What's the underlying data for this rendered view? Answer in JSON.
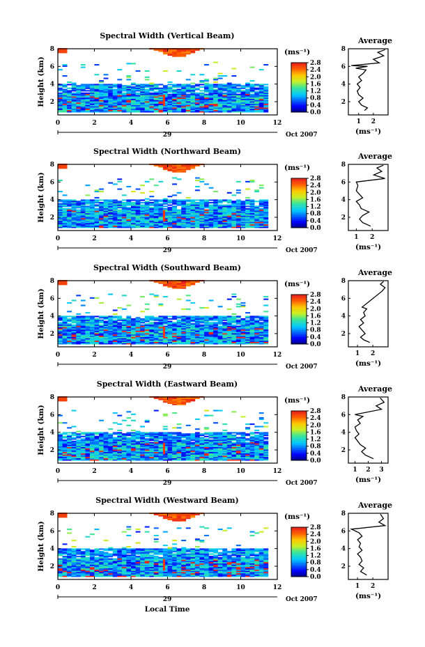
{
  "figure": {
    "ylabel": "Height (km)",
    "xlabel": "Local Time",
    "date_day": "29",
    "date_rest": "Oct 2007",
    "colorbar_unit": "(ms⁻¹)",
    "average_title": "Average",
    "average_unit": "(ms⁻¹)"
  },
  "chart_data": [
    {
      "type": "heatmap",
      "title": "Spectral Width (Vertical Beam)",
      "x_ticks": [
        "0",
        "2",
        "4",
        "6",
        "8",
        "10",
        "12"
      ],
      "xlim": [
        0,
        12
      ],
      "y_ticks": [
        "2",
        "4",
        "6",
        "8"
      ],
      "ylim": [
        0.5,
        8
      ],
      "colorbar_ticks": [
        "0.0",
        "0.4",
        "0.8",
        "1.2",
        "1.6",
        "2.0",
        "2.4",
        "2.8"
      ],
      "colorbar_range": [
        0,
        2.8
      ],
      "average": {
        "x_ticks": [
          "1",
          "2"
        ],
        "xlim": [
          0.3,
          3.0
        ],
        "y_ticks": [
          "2",
          "4",
          "6",
          "8"
        ],
        "ylim": [
          0.5,
          8
        ],
        "profile": [
          [
            1.4,
            1.0
          ],
          [
            1.6,
            1.3
          ],
          [
            1.2,
            1.6
          ],
          [
            1.0,
            2.0
          ],
          [
            1.3,
            2.4
          ],
          [
            1.0,
            2.8
          ],
          [
            0.9,
            3.2
          ],
          [
            1.1,
            3.6
          ],
          [
            0.9,
            4.0
          ],
          [
            1.2,
            4.4
          ],
          [
            1.0,
            4.8
          ],
          [
            1.3,
            5.2
          ],
          [
            1.5,
            5.6
          ],
          [
            0.8,
            5.8
          ],
          [
            1.6,
            6.0
          ],
          [
            0.5,
            6.1
          ],
          [
            2.4,
            6.4
          ],
          [
            2.0,
            6.8
          ],
          [
            2.7,
            7.2
          ],
          [
            2.3,
            7.6
          ],
          [
            2.8,
            7.9
          ]
        ]
      }
    },
    {
      "type": "heatmap",
      "title": "Spectral Width (Northward Beam)",
      "x_ticks": [
        "0",
        "2",
        "4",
        "6",
        "8",
        "10",
        "12"
      ],
      "xlim": [
        0,
        12
      ],
      "y_ticks": [
        "2",
        "4",
        "6",
        "8"
      ],
      "ylim": [
        0.5,
        8
      ],
      "colorbar_ticks": [
        "0.0",
        "0.4",
        "0.8",
        "1.2",
        "1.6",
        "2.0",
        "2.4",
        "2.8"
      ],
      "colorbar_range": [
        0,
        2.8
      ],
      "average": {
        "x_ticks": [
          "1",
          "2"
        ],
        "xlim": [
          0.5,
          3.0
        ],
        "y_ticks": [
          "2",
          "4",
          "6",
          "8"
        ],
        "ylim": [
          0.5,
          8
        ],
        "profile": [
          [
            1.9,
            1.0
          ],
          [
            1.4,
            1.4
          ],
          [
            1.2,
            1.8
          ],
          [
            1.4,
            2.2
          ],
          [
            1.8,
            2.6
          ],
          [
            1.3,
            3.0
          ],
          [
            1.2,
            3.4
          ],
          [
            1.0,
            3.8
          ],
          [
            1.4,
            4.2
          ],
          [
            1.2,
            4.6
          ],
          [
            1.0,
            5.0
          ],
          [
            1.1,
            5.6
          ],
          [
            1.0,
            6.0
          ],
          [
            2.8,
            6.4
          ],
          [
            2.1,
            6.8
          ],
          [
            2.6,
            7.2
          ],
          [
            2.3,
            7.6
          ],
          [
            2.7,
            7.9
          ]
        ]
      }
    },
    {
      "type": "heatmap",
      "title": "Spectral Width (Southward Beam)",
      "x_ticks": [
        "0",
        "2",
        "4",
        "6",
        "8",
        "10",
        "12"
      ],
      "xlim": [
        0,
        12
      ],
      "y_ticks": [
        "2",
        "4",
        "6",
        "8"
      ],
      "ylim": [
        0.5,
        8
      ],
      "colorbar_ticks": [
        "0.0",
        "0.4",
        "0.8",
        "1.2",
        "1.6",
        "2.0",
        "2.4",
        "2.8"
      ],
      "colorbar_range": [
        0,
        2.8
      ],
      "average": {
        "x_ticks": [
          "1",
          "2"
        ],
        "xlim": [
          0.4,
          3.0
        ],
        "y_ticks": [
          "2",
          "4",
          "6",
          "8"
        ],
        "ylim": [
          0.5,
          8
        ],
        "profile": [
          [
            1.8,
            1.0
          ],
          [
            1.4,
            1.3
          ],
          [
            1.2,
            1.6
          ],
          [
            1.5,
            2.0
          ],
          [
            1.3,
            2.4
          ],
          [
            1.1,
            2.8
          ],
          [
            1.4,
            3.2
          ],
          [
            1.2,
            3.6
          ],
          [
            1.5,
            4.0
          ],
          [
            1.4,
            4.4
          ],
          [
            1.6,
            4.8
          ],
          [
            1.3,
            5.0
          ],
          [
            2.6,
            6.8
          ],
          [
            2.8,
            7.2
          ],
          [
            2.5,
            7.6
          ],
          [
            2.7,
            7.9
          ]
        ]
      }
    },
    {
      "type": "heatmap",
      "title": "Spectral Width (Eastward Beam)",
      "x_ticks": [
        "0",
        "2",
        "4",
        "6",
        "8",
        "10",
        "12"
      ],
      "xlim": [
        0,
        12
      ],
      "y_ticks": [
        "2",
        "4",
        "6",
        "8"
      ],
      "ylim": [
        0.5,
        8
      ],
      "colorbar_ticks": [
        "0.0",
        "0.4",
        "0.8",
        "1.2",
        "1.6",
        "2.0",
        "2.4",
        "2.8"
      ],
      "colorbar_range": [
        0,
        2.8
      ],
      "average": {
        "x_ticks": [
          "1",
          "2",
          "3"
        ],
        "xlim": [
          0.5,
          3.5
        ],
        "y_ticks": [
          "2",
          "4",
          "6",
          "8"
        ],
        "ylim": [
          0.5,
          8
        ],
        "profile": [
          [
            2.4,
            1.0
          ],
          [
            1.8,
            1.4
          ],
          [
            1.5,
            1.8
          ],
          [
            1.8,
            2.2
          ],
          [
            1.4,
            2.6
          ],
          [
            1.2,
            3.0
          ],
          [
            1.0,
            3.4
          ],
          [
            1.3,
            3.8
          ],
          [
            1.1,
            4.2
          ],
          [
            1.0,
            4.6
          ],
          [
            1.4,
            5.0
          ],
          [
            1.2,
            5.4
          ],
          [
            1.6,
            5.8
          ],
          [
            1.0,
            6.0
          ],
          [
            3.0,
            6.6
          ],
          [
            2.6,
            7.0
          ],
          [
            3.2,
            7.4
          ],
          [
            2.9,
            7.9
          ]
        ]
      }
    },
    {
      "type": "heatmap",
      "title": "Spectral Width (Westward Beam)",
      "x_ticks": [
        "0",
        "2",
        "4",
        "6",
        "8",
        "10",
        "12"
      ],
      "xlim": [
        0,
        12
      ],
      "y_ticks": [
        "2",
        "4",
        "6",
        "8"
      ],
      "ylim": [
        0.5,
        8
      ],
      "colorbar_ticks": [
        "0.0",
        "0.4",
        "0.8",
        "1.2",
        "1.6",
        "2.0",
        "2.4",
        "2.8"
      ],
      "colorbar_range": [
        0,
        2.8
      ],
      "average": {
        "x_ticks": [
          "1",
          "2"
        ],
        "xlim": [
          0.4,
          3.0
        ],
        "y_ticks": [
          "2",
          "4",
          "6",
          "8"
        ],
        "ylim": [
          0.5,
          8
        ],
        "profile": [
          [
            1.6,
            1.0
          ],
          [
            1.2,
            1.4
          ],
          [
            1.4,
            1.8
          ],
          [
            1.1,
            2.2
          ],
          [
            1.3,
            2.6
          ],
          [
            1.2,
            3.0
          ],
          [
            1.0,
            3.4
          ],
          [
            1.3,
            3.8
          ],
          [
            1.1,
            4.2
          ],
          [
            1.2,
            4.6
          ],
          [
            1.0,
            5.0
          ],
          [
            1.3,
            5.4
          ],
          [
            1.1,
            5.8
          ],
          [
            0.6,
            6.2
          ],
          [
            2.8,
            6.6
          ],
          [
            2.4,
            7.0
          ],
          [
            2.7,
            7.4
          ],
          [
            2.5,
            7.9
          ]
        ]
      }
    }
  ]
}
